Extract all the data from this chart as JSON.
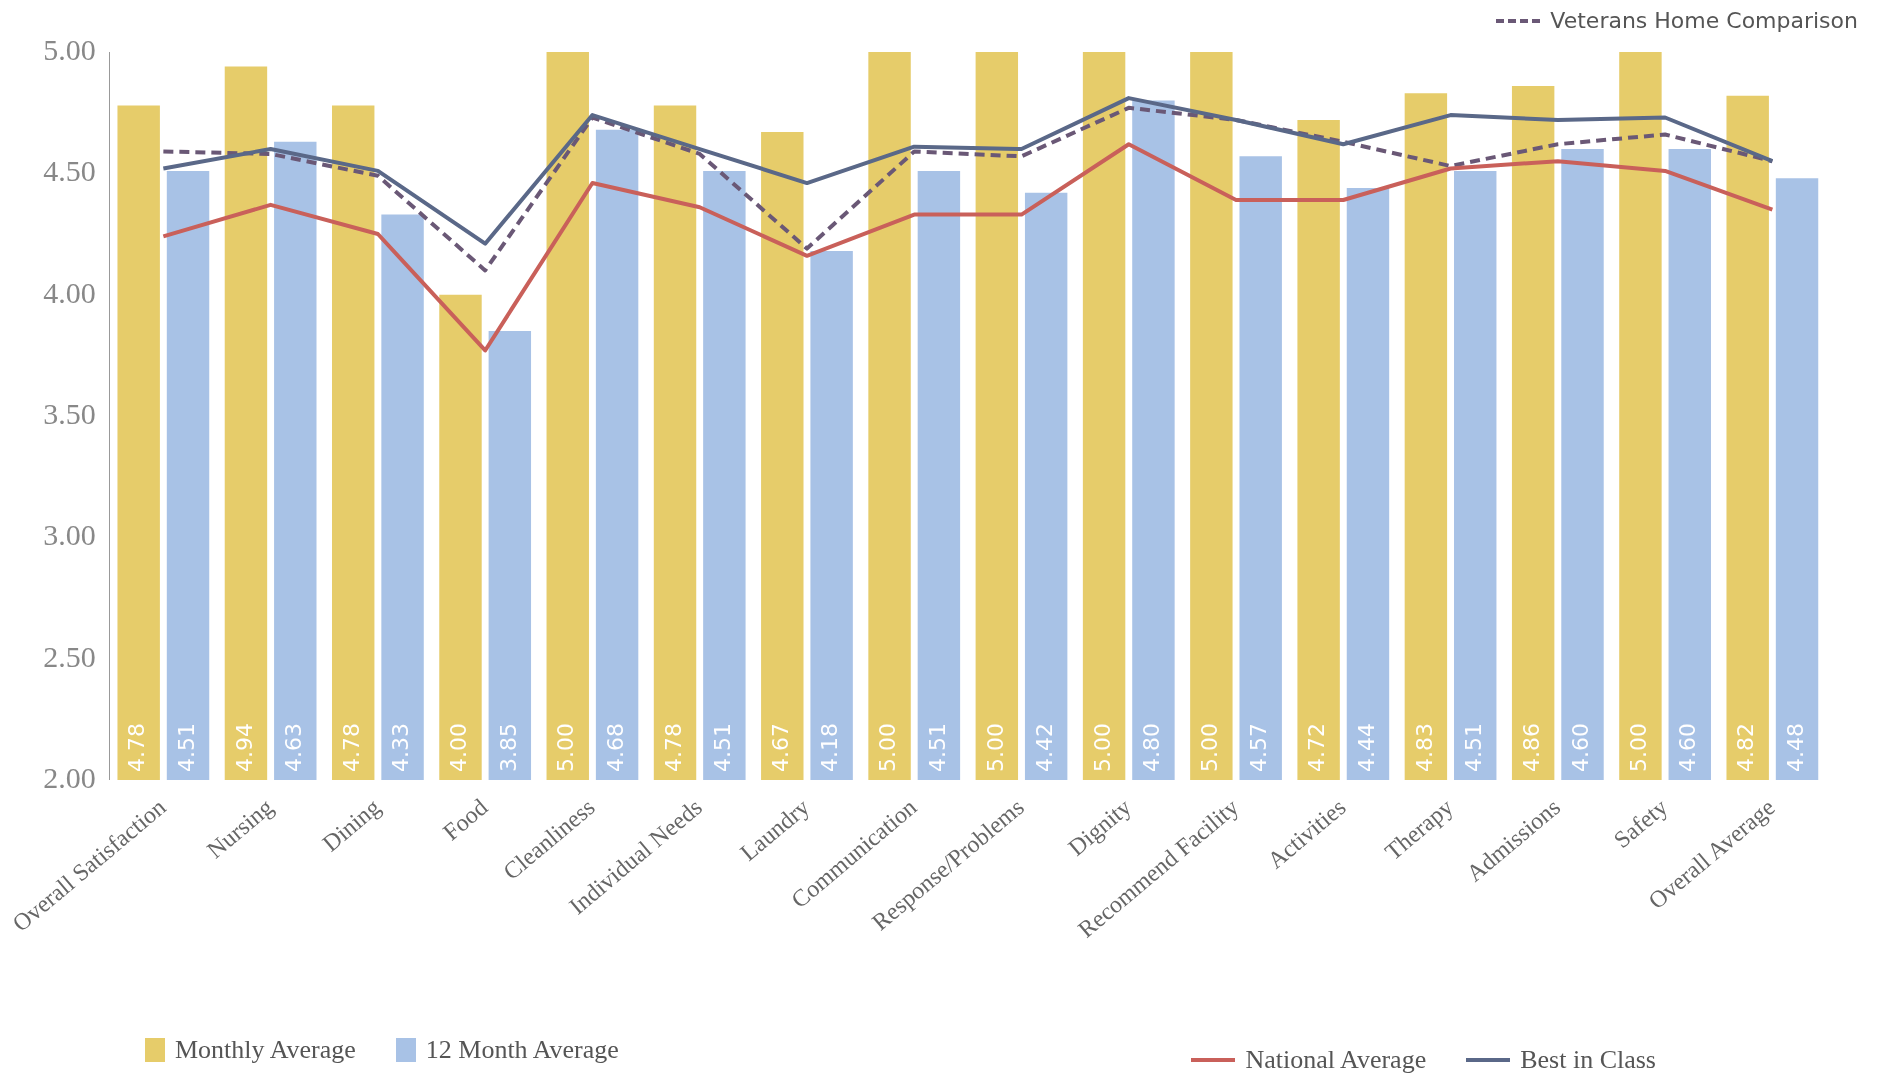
{
  "chart_data": {
    "type": "bar",
    "categories": [
      "Overall Satisfaction",
      "Nursing",
      "Dining",
      "Food",
      "Cleanliness",
      "Individual Needs",
      "Laundry",
      "Communication",
      "Response/Problems",
      "Dignity",
      "Recommend Facility",
      "Activities",
      "Therapy",
      "Admissions",
      "Safety",
      "Overall Average"
    ],
    "series": [
      {
        "name": "Monthly Average",
        "color": "#e6cc6a",
        "values": [
          4.78,
          4.94,
          4.78,
          4.0,
          5.0,
          4.78,
          4.67,
          5.0,
          5.0,
          5.0,
          5.0,
          4.72,
          4.83,
          4.86,
          5.0,
          4.82
        ],
        "value_labels": [
          "4.78",
          "4.94",
          "4.78",
          "4.00",
          "5.00",
          "4.78",
          "4.67",
          "5.00",
          "5.00",
          "5.00",
          "5.00",
          "4.72",
          "4.83",
          "4.86",
          "5.00",
          "4.82"
        ]
      },
      {
        "name": "12 Month Average",
        "color": "#a8c2e6",
        "values": [
          4.51,
          4.63,
          4.33,
          3.85,
          4.68,
          4.51,
          4.18,
          4.51,
          4.42,
          4.8,
          4.57,
          4.44,
          4.51,
          4.6,
          4.6,
          4.48
        ],
        "value_labels": [
          "4.51",
          "4.63",
          "4.33",
          "3.85",
          "4.68",
          "4.51",
          "4.18",
          "4.51",
          "4.42",
          "4.80",
          "4.57",
          "4.44",
          "4.51",
          "4.60",
          "4.60",
          "4.48"
        ]
      },
      {
        "name": "National Average",
        "type": "line",
        "line_style": "solid",
        "color": "#c9605a",
        "values": [
          4.24,
          4.37,
          4.25,
          3.77,
          4.46,
          4.36,
          4.16,
          4.33,
          4.33,
          4.62,
          4.39,
          4.39,
          4.52,
          4.55,
          4.51,
          4.35
        ]
      },
      {
        "name": "Best in Class",
        "type": "line",
        "line_style": "solid",
        "color": "#5a6888",
        "values": [
          4.52,
          4.6,
          4.51,
          4.21,
          4.74,
          4.6,
          4.46,
          4.61,
          4.6,
          4.81,
          4.72,
          4.62,
          4.74,
          4.72,
          4.73,
          4.55
        ]
      },
      {
        "name": "Veterans Home Comparison",
        "type": "line",
        "line_style": "dashed",
        "color": "#6a5876",
        "values": [
          4.59,
          4.58,
          4.49,
          4.1,
          4.73,
          4.58,
          4.19,
          4.59,
          4.57,
          4.77,
          4.72,
          4.63,
          4.53,
          4.62,
          4.66,
          4.55
        ]
      }
    ],
    "ylim": [
      2,
      5
    ],
    "yticks": [
      {
        "value": 2,
        "label": "2.00"
      },
      {
        "value": 2.5,
        "label": "2.50"
      },
      {
        "value": 3,
        "label": "3.00"
      },
      {
        "value": 3.5,
        "label": "3.50"
      },
      {
        "value": 4,
        "label": "4.00"
      },
      {
        "value": 4.5,
        "label": "4.50"
      },
      {
        "value": 5,
        "label": "5.00"
      }
    ],
    "grid": false,
    "legend": "bottom",
    "marker": "none"
  }
}
